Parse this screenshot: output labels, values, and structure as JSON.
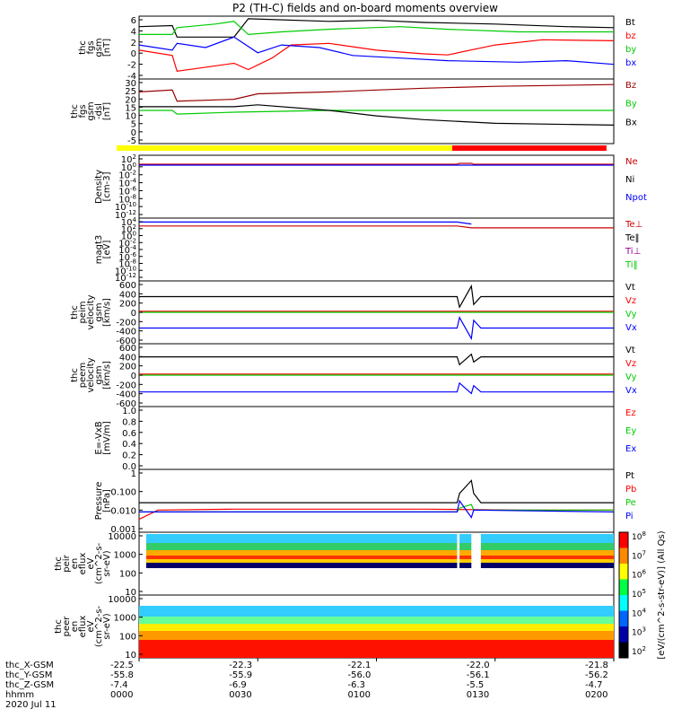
{
  "title": "P2 (TH-C) fields and on-board moments overview",
  "time_axis": {
    "start_hhmm": "0000",
    "end_hhmm": "0200",
    "ticks": [
      {
        "frac": 0.0,
        "x_gsm": "-22.5",
        "y_gsm": "-55.8",
        "z_gsm": "-7.4",
        "hhmm": "0000"
      },
      {
        "frac": 0.25,
        "x_gsm": "-22.3",
        "y_gsm": "-55.9",
        "z_gsm": "-6.9",
        "hhmm": "0030"
      },
      {
        "frac": 0.5,
        "x_gsm": "-22.1",
        "y_gsm": "-56.0",
        "z_gsm": "-6.3",
        "hhmm": "0100"
      },
      {
        "frac": 0.75,
        "x_gsm": "-22.0",
        "y_gsm": "-56.1",
        "z_gsm": "-5.5",
        "hhmm": "0130"
      },
      {
        "frac": 1.0,
        "x_gsm": "-21.8",
        "y_gsm": "-56.2",
        "z_gsm": "-4.7",
        "hhmm": "0200"
      }
    ],
    "row_labels": [
      "thc_X-GSM",
      "thc_Y-GSM",
      "thc_Z-GSM",
      "hhmm",
      "2020 Jul 11"
    ]
  },
  "mode_bar": {
    "segments": [
      {
        "from": 0.0,
        "to": 0.675,
        "color": "#ffff00"
      },
      {
        "from": 0.675,
        "to": 1.0,
        "color": "#ff0000"
      }
    ]
  },
  "chart_data": [
    {
      "type": "line",
      "id": "fgs",
      "ylabel": [
        "thc",
        "fgs",
        "gsm",
        "[nT]"
      ],
      "ylim": [
        -6,
        6
      ],
      "tick_labels": [
        "6",
        "4",
        "2",
        "0",
        "-2",
        "-4"
      ],
      "series": [
        {
          "name": "Bt",
          "color": "#000000",
          "x": [
            0.0,
            0.07,
            0.08,
            0.2,
            0.23,
            0.4,
            0.5,
            0.6,
            0.75,
            0.9,
            1.0
          ],
          "y": [
            4.0,
            4.2,
            2.0,
            2.0,
            5.5,
            5.0,
            5.2,
            4.8,
            4.5,
            4.0,
            3.8
          ]
        },
        {
          "name": "bz",
          "color": "#ff0000",
          "x": [
            0.0,
            0.07,
            0.08,
            0.2,
            0.23,
            0.28,
            0.32,
            0.4,
            0.5,
            0.6,
            0.65,
            0.75,
            0.85,
            1.0
          ],
          "y": [
            -0.5,
            -1.5,
            -4.5,
            -3.0,
            -4.2,
            -2.0,
            0.5,
            0.8,
            -0.5,
            -1.2,
            -1.4,
            0.5,
            1.5,
            1.3
          ]
        },
        {
          "name": "by",
          "color": "#00cc00",
          "x": [
            0.0,
            0.07,
            0.08,
            0.16,
            0.2,
            0.23,
            0.3,
            0.4,
            0.55,
            0.65,
            0.8,
            1.0
          ],
          "y": [
            2.5,
            2.5,
            3.8,
            4.5,
            5.0,
            2.5,
            3.0,
            3.5,
            4.0,
            3.5,
            3.0,
            3.0
          ]
        },
        {
          "name": "bx",
          "color": "#0000ff",
          "x": [
            0.0,
            0.07,
            0.08,
            0.14,
            0.2,
            0.25,
            0.3,
            0.38,
            0.45,
            0.55,
            0.65,
            0.8,
            0.9,
            1.0
          ],
          "y": [
            0.5,
            -0.5,
            0.8,
            0.0,
            2.0,
            -1.0,
            0.5,
            0.0,
            -1.5,
            -2.0,
            -2.5,
            -2.8,
            -2.5,
            -3.2
          ]
        }
      ],
      "legend": [
        {
          "label": "Bt",
          "color": "#000000"
        },
        {
          "label": "bz",
          "color": "#ff0000"
        },
        {
          "label": "by",
          "color": "#00cc00"
        },
        {
          "label": "bx",
          "color": "#0000ff"
        }
      ]
    },
    {
      "type": "line",
      "id": "fgs_dsl",
      "ylabel": [
        "thc",
        "fgs",
        "gsm",
        "-dsl",
        "[nT]"
      ],
      "ylim": [
        -5,
        30
      ],
      "tick_labels": [
        "30",
        "25",
        "20",
        "15",
        "10",
        "5",
        "0",
        "-5"
      ],
      "series": [
        {
          "name": "Bz",
          "color": "#990000",
          "x": [
            0.0,
            0.07,
            0.08,
            0.2,
            0.25,
            0.4,
            0.5,
            0.6,
            0.75,
            1.0
          ],
          "y": [
            23,
            24,
            18,
            19,
            22,
            23,
            24,
            25,
            26,
            27
          ]
        },
        {
          "name": "By",
          "color": "#00cc00",
          "x": [
            0.0,
            0.07,
            0.08,
            0.2,
            0.4,
            0.6,
            1.0
          ],
          "y": [
            13,
            13,
            11,
            12,
            13,
            13,
            13
          ]
        },
        {
          "name": "Bx",
          "color": "#000000",
          "x": [
            0.0,
            0.07,
            0.08,
            0.2,
            0.25,
            0.4,
            0.5,
            0.6,
            0.75,
            1.0
          ],
          "y": [
            15,
            15,
            15,
            15,
            16,
            13,
            10,
            8,
            6,
            5
          ]
        }
      ],
      "legend": [
        {
          "label": "Bz",
          "color": "#990000"
        },
        {
          "label": "By",
          "color": "#00cc00"
        },
        {
          "label": "Bx",
          "color": "#000000"
        }
      ]
    },
    {
      "type": "line",
      "id": "density",
      "ylabel": [
        "Density",
        "[cm-3]"
      ],
      "scale": "log",
      "ylim": [
        -12,
        2
      ],
      "tick_labels": [
        "10^2",
        "10^0",
        "10^-2",
        "10^-4",
        "10^-6",
        "10^-8",
        "10^-10",
        "10^-12"
      ],
      "series": [
        {
          "name": "Ne",
          "color": "#cc0000",
          "x": [
            0.0,
            0.67,
            0.675,
            0.7,
            0.705,
            1.0
          ],
          "y": [
            0.0,
            0.0,
            0.2,
            0.2,
            0.0,
            0.0
          ]
        },
        {
          "name": "Npot",
          "color": "#0000ff",
          "x": [
            0.0,
            1.0
          ],
          "y": [
            -0.2,
            -0.2
          ]
        }
      ],
      "legend": [
        {
          "label": "Ne",
          "color": "#cc0000"
        },
        {
          "label": "Ni",
          "color": "#000000"
        },
        {
          "label": "Npot",
          "color": "#0000ff"
        }
      ]
    },
    {
      "type": "line",
      "id": "temperature",
      "ylabel": [
        "magt3",
        "[eV]"
      ],
      "scale": "log",
      "ylim": [
        -12,
        4
      ],
      "tick_labels": [
        "10^4",
        "10^2",
        "10^0",
        "10^-2",
        "10^-4",
        "10^-6",
        "10^-8",
        "10^-10",
        "10^-12"
      ],
      "series": [
        {
          "name": "Ti",
          "color": "#0000ff",
          "x": [
            0.0,
            0.67,
            0.7
          ],
          "y": [
            3.0,
            3.0,
            2.5
          ]
        },
        {
          "name": "Te",
          "color": "#cc0000",
          "x": [
            0.0,
            0.67,
            0.7,
            1.0
          ],
          "y": [
            2.0,
            2.0,
            1.5,
            1.5
          ]
        }
      ],
      "legend": [
        {
          "label": "Te⊥",
          "color": "#cc0000"
        },
        {
          "label": "Te‖",
          "color": "#000000"
        },
        {
          "label": "Ti⊥",
          "color": "#990099"
        },
        {
          "label": "Ti‖",
          "color": "#00cc00"
        }
      ]
    },
    {
      "type": "line",
      "id": "peim_velocity",
      "ylabel": [
        "thc",
        "peim",
        "velocity",
        "gsm",
        "[km/s]"
      ],
      "ylim": [
        -600,
        600
      ],
      "tick_labels": [
        "600",
        "400",
        "200",
        "0",
        "-200",
        "-400",
        "-600"
      ],
      "series": [
        {
          "name": "Vt",
          "color": "#000000",
          "x": [
            0.0,
            0.67,
            0.675,
            0.7,
            0.705,
            0.72,
            1.0
          ],
          "y": [
            300,
            300,
            100,
            500,
            150,
            300,
            300
          ]
        },
        {
          "name": "Vz",
          "color": "#ff0000",
          "x": [
            0.0,
            1.0
          ],
          "y": [
            20,
            20
          ]
        },
        {
          "name": "Vy",
          "color": "#00cc00",
          "x": [
            0.0,
            1.0
          ],
          "y": [
            0,
            0
          ]
        },
        {
          "name": "Vx",
          "color": "#0000ff",
          "x": [
            0.0,
            0.67,
            0.675,
            0.7,
            0.705,
            0.72,
            1.0
          ],
          "y": [
            -300,
            -300,
            -100,
            -500,
            -150,
            -300,
            -300
          ]
        }
      ],
      "legend": [
        {
          "label": "Vt",
          "color": "#000000"
        },
        {
          "label": "Vz",
          "color": "#ff0000"
        },
        {
          "label": "Vy",
          "color": "#00cc00"
        },
        {
          "label": "Vx",
          "color": "#0000ff"
        }
      ]
    },
    {
      "type": "line",
      "id": "peem_velocity",
      "ylabel": [
        "thc",
        "peem",
        "velocity",
        "gsm",
        "[km/s]"
      ],
      "ylim": [
        -600,
        600
      ],
      "tick_labels": [
        "600",
        "400",
        "200",
        "0",
        "-200",
        "-400",
        "-600"
      ],
      "series": [
        {
          "name": "Vt",
          "color": "#000000",
          "x": [
            0.0,
            0.67,
            0.675,
            0.7,
            0.705,
            0.72,
            1.0
          ],
          "y": [
            350,
            350,
            200,
            400,
            250,
            350,
            350
          ]
        },
        {
          "name": "Vz",
          "color": "#ff0000",
          "x": [
            0.0,
            1.0
          ],
          "y": [
            20,
            20
          ]
        },
        {
          "name": "Vy",
          "color": "#00cc00",
          "x": [
            0.0,
            1.0
          ],
          "y": [
            0,
            0
          ]
        },
        {
          "name": "Vx",
          "color": "#0000ff",
          "x": [
            0.0,
            0.67,
            0.675,
            0.7,
            0.705,
            0.72,
            1.0
          ],
          "y": [
            -320,
            -320,
            -150,
            -350,
            -200,
            -320,
            -320
          ]
        }
      ],
      "legend": [
        {
          "label": "Vt",
          "color": "#000000"
        },
        {
          "label": "Vz",
          "color": "#ff0000"
        },
        {
          "label": "Vy",
          "color": "#00cc00"
        },
        {
          "label": "Vx",
          "color": "#0000ff"
        }
      ]
    },
    {
      "type": "line",
      "id": "efield",
      "ylabel": [
        "E=-VxB",
        "[mV/m]"
      ],
      "ylim": [
        0.0,
        1.0
      ],
      "tick_labels": [
        "1.0",
        "0.8",
        "0.6",
        "0.4",
        "0.2",
        "0.0"
      ],
      "series": [],
      "legend": [
        {
          "label": "Ez",
          "color": "#ff0000"
        },
        {
          "label": "Ey",
          "color": "#00cc00"
        },
        {
          "label": "Ex",
          "color": "#0000ff"
        }
      ]
    },
    {
      "type": "line",
      "id": "pressure",
      "ylabel": [
        "Pressure",
        "[nPa]"
      ],
      "scale": "log",
      "ylim": [
        -3.3,
        0.1
      ],
      "tick_labels": [
        "1",
        "0.100",
        "0.010",
        "0.001"
      ],
      "series": [
        {
          "name": "Pt",
          "color": "#000000",
          "x": [
            0.0,
            0.67,
            0.675,
            0.7,
            0.705,
            0.72,
            1.0
          ],
          "y": [
            -1.7,
            -1.7,
            -1.2,
            -0.5,
            -1.2,
            -1.7,
            -1.7
          ]
        },
        {
          "name": "Pb",
          "color": "#ff0000",
          "x": [
            0.0,
            0.04,
            0.2,
            0.4,
            0.6,
            0.8,
            1.0
          ],
          "y": [
            -2.6,
            -2.1,
            -2.05,
            -2.05,
            -2.05,
            -2.1,
            -2.1
          ]
        },
        {
          "name": "Pe",
          "color": "#00cc00",
          "x": [
            0.0,
            0.67,
            0.675,
            0.7,
            0.705,
            1.0
          ],
          "y": [
            -2.2,
            -2.2,
            -2.0,
            -1.8,
            -2.1,
            -2.1
          ]
        },
        {
          "name": "Pi",
          "color": "#0000ff",
          "x": [
            0.0,
            0.67,
            0.675,
            0.7,
            0.705,
            1.0
          ],
          "y": [
            -2.2,
            -2.2,
            -1.6,
            -2.5,
            -2.1,
            -2.2
          ]
        }
      ],
      "legend": [
        {
          "label": "Pt",
          "color": "#000000"
        },
        {
          "label": "Pb",
          "color": "#ff0000"
        },
        {
          "label": "Pe",
          "color": "#00cc00"
        },
        {
          "label": "Pi",
          "color": "#0000ff"
        }
      ]
    },
    {
      "type": "heatmap",
      "id": "peir_eflux",
      "ylabel": [
        "thc",
        "peir",
        "en",
        "eflux",
        "eV",
        "(cm^2-s-",
        "sr-eV)"
      ],
      "scale": "log",
      "ylim": [
        0.7,
        4.2
      ],
      "tick_labels": [
        "10000",
        "1000",
        "100",
        "10"
      ],
      "time_coverage": [
        0.015,
        1.0
      ],
      "gaps": [
        [
          0.67,
          0.675
        ],
        [
          0.7,
          0.72
        ]
      ],
      "bands": [
        {
          "lo": 3.6,
          "hi": 4.1,
          "color": "#33ccff"
        },
        {
          "lo": 3.2,
          "hi": 3.6,
          "color": "#33cc66"
        },
        {
          "lo": 2.9,
          "hi": 3.2,
          "color": "#ffaa00"
        },
        {
          "lo": 2.7,
          "hi": 2.9,
          "color": "#ff3300"
        },
        {
          "lo": 2.5,
          "hi": 2.7,
          "color": "#ffcc00"
        },
        {
          "lo": 2.2,
          "hi": 2.5,
          "color": "#000066"
        }
      ]
    },
    {
      "type": "heatmap",
      "id": "peer_eflux",
      "ylabel": [
        "thc",
        "peer",
        "en",
        "eflux",
        "eV",
        "(cm^2-s-",
        "sr-eV)"
      ],
      "scale": "log",
      "ylim": [
        0.7,
        4.2
      ],
      "tick_labels": [
        "10000",
        "1000",
        "100",
        "10"
      ],
      "time_coverage": [
        0.0,
        1.0
      ],
      "bands": [
        {
          "lo": 3.0,
          "hi": 3.6,
          "color": "#33ccff"
        },
        {
          "lo": 2.6,
          "hi": 3.0,
          "color": "#66ff99"
        },
        {
          "lo": 2.2,
          "hi": 2.6,
          "color": "#ffee00"
        },
        {
          "lo": 1.7,
          "hi": 2.2,
          "color": "#ff9900"
        },
        {
          "lo": 0.7,
          "hi": 1.7,
          "color": "#ff1100"
        }
      ]
    }
  ],
  "colorbar": {
    "title": "[eV/(cm^2-s-str-eV)] (All Qs)",
    "ticks": [
      "10^8",
      "10^7",
      "10^6",
      "10^5",
      "10^4",
      "10^3",
      "10^2"
    ],
    "colors": [
      "#ff0000",
      "#ff8800",
      "#ffff00",
      "#00ff44",
      "#00ffff",
      "#0066ff",
      "#0000aa",
      "#000000"
    ]
  }
}
